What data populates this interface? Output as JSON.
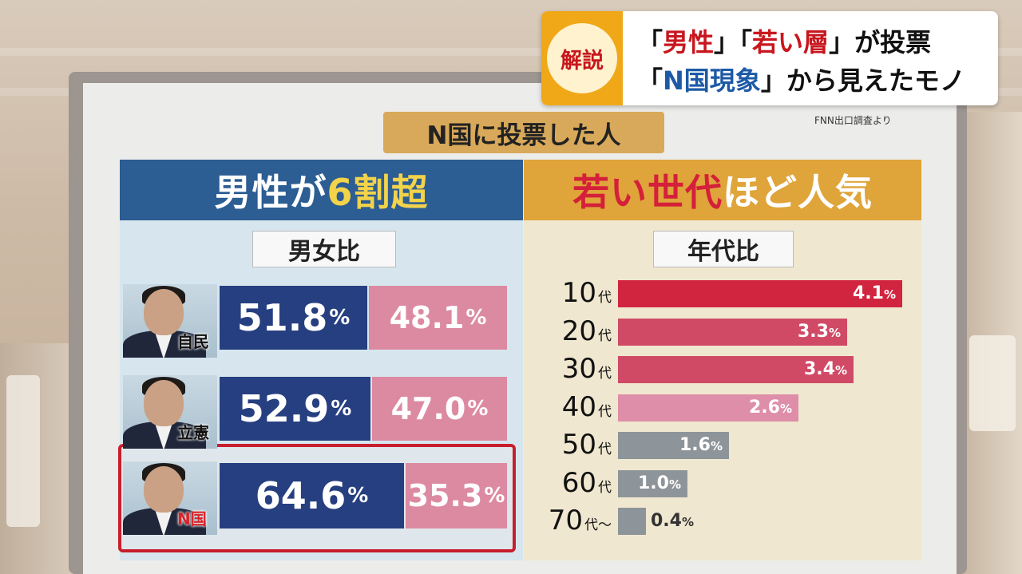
{
  "caption": {
    "tag": "解説",
    "line1": [
      {
        "text": "「",
        "style": "plain"
      },
      {
        "text": "男性",
        "style": "red"
      },
      {
        "text": "」「",
        "style": "plain"
      },
      {
        "text": "若い層",
        "style": "red"
      },
      {
        "text": "」が投票",
        "style": "plain"
      }
    ],
    "line2": [
      {
        "text": "「",
        "style": "plain"
      },
      {
        "text": "N国現象",
        "style": "blue"
      },
      {
        "text": "」から見えたモノ",
        "style": "plain"
      }
    ]
  },
  "board": {
    "title": "N国に投票した人",
    "source": "FNN出口調査より"
  },
  "left": {
    "headline_pre": "男性が",
    "headline_hl": "6割超",
    "subhead": "男女比",
    "rows": [
      {
        "party": "自民",
        "male": "51.8",
        "female": "48.1",
        "highlight": false
      },
      {
        "party": "立憲",
        "male": "52.9",
        "female": "47.0",
        "highlight": false
      },
      {
        "party": "N国",
        "male": "64.6",
        "female": "35.3",
        "highlight": true
      }
    ],
    "pct": "%"
  },
  "right": {
    "headline_pre": "若い世代",
    "headline_post": "ほど人気",
    "subhead": "年代比",
    "age_suffix": "代",
    "bars": [
      {
        "num": "10",
        "label_tail": "",
        "value": 4.1,
        "text": "4.1",
        "color": "#d1243f"
      },
      {
        "num": "20",
        "label_tail": "",
        "value": 3.3,
        "text": "3.3",
        "color": "#d04a66"
      },
      {
        "num": "30",
        "label_tail": "",
        "value": 3.4,
        "text": "3.4",
        "color": "#d04a66"
      },
      {
        "num": "40",
        "label_tail": "",
        "value": 2.6,
        "text": "2.6",
        "color": "#de8ea8"
      },
      {
        "num": "50",
        "label_tail": "",
        "value": 1.6,
        "text": "1.6",
        "color": "#8e959a"
      },
      {
        "num": "60",
        "label_tail": "",
        "value": 1.0,
        "text": "1.0",
        "color": "#8e959a"
      },
      {
        "num": "70",
        "label_tail": "〜",
        "value": 0.4,
        "text": "0.4",
        "color": "#8e959a"
      }
    ],
    "pct": "%"
  }
}
